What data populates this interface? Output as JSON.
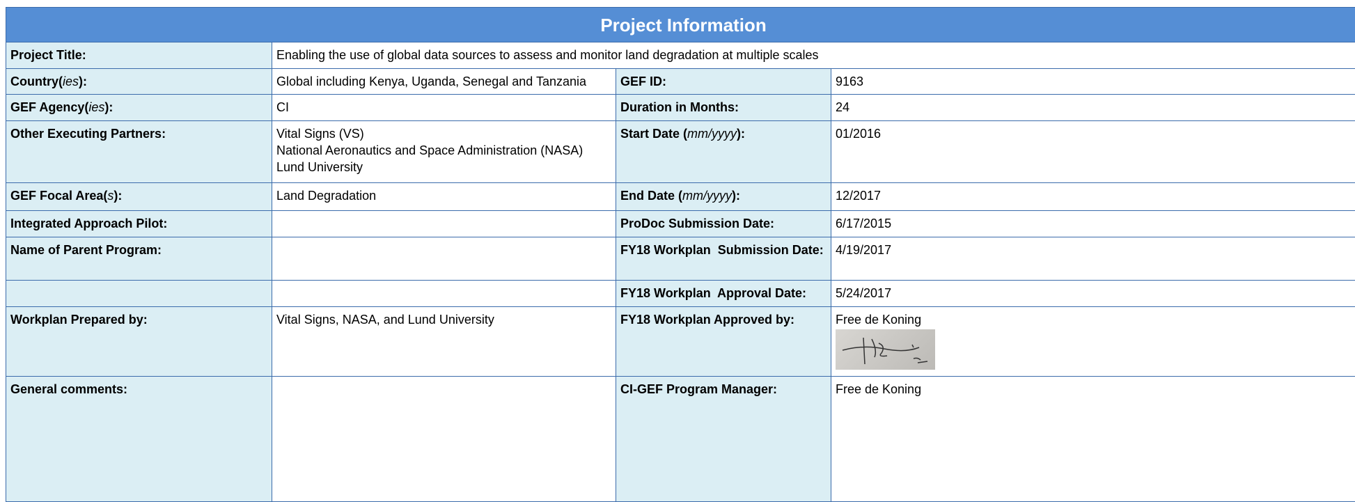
{
  "header": {
    "title": "Project Information"
  },
  "table": {
    "rows": [
      [
        "Project Title:",
        "Enabling the use of global data sources to assess and monitor land degradation at multiple scales"
      ],
      [
        [
          "Country(",
          "ies",
          "):"
        ],
        "Global including Kenya, Uganda, Senegal and Tanzania",
        "GEF ID:",
        "9163"
      ],
      [
        [
          "GEF Agency(",
          "ies",
          "):"
        ],
        "CI",
        "Duration in Months:",
        "24"
      ],
      [
        "Other Executing Partners:",
        [
          "Vital Signs (VS)",
          "National Aeronautics and Space Administration (NASA)",
          "Lund University"
        ],
        [
          "Start Date (",
          "mm/yyyy",
          "):"
        ],
        "01/2016"
      ],
      [
        [
          "GEF Focal Area(",
          "s",
          "):"
        ],
        "Land Degradation",
        [
          "End Date (",
          "mm/yyyy",
          "):"
        ],
        "12/2017"
      ],
      [
        "Integrated Approach Pilot:",
        null,
        "ProDoc Submission Date:",
        "6/17/2015"
      ],
      [
        "Name of Parent Program:",
        null,
        "FY18 Workplan  Submission Date:",
        "4/19/2017"
      ],
      [
        null,
        null,
        "FY18 Workplan  Approval Date:",
        "5/24/2017"
      ],
      [
        "Workplan Prepared by:",
        "Vital Signs, NASA, and Lund University",
        "FY18 Workplan Approved by:",
        "Free de Koning"
      ],
      [
        "General comments:",
        null,
        "CI-GEF Program Manager:",
        "Free de Koning"
      ]
    ]
  }
}
